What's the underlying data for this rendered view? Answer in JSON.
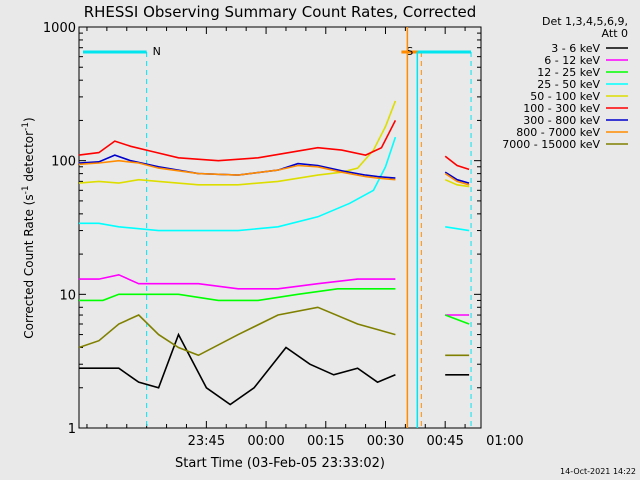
{
  "chart_data": {
    "type": "line",
    "title": "RHESSI Observing Summary Count Rates, Corrected",
    "xlabel": "Start Time (03-Feb-05 23:33:02)",
    "ylabel": "Corrected Count Rate (s-1 detector-1)",
    "ylabel_parts": {
      "pre": "Corrected Count Rate (s",
      "sup1": "-1",
      "mid": " detector",
      "sup2": "-1",
      "post": ")"
    },
    "y_scale": "log",
    "ylim": [
      1,
      1000
    ],
    "xlim_minutes": [
      -20,
      81
    ],
    "x_ticks": [
      {
        "label": "23:45",
        "m": 12
      },
      {
        "label": "00:00",
        "m": 27
      },
      {
        "label": "00:15",
        "m": 42
      },
      {
        "label": "00:30",
        "m": 57
      },
      {
        "label": "00:45",
        "m": 72
      },
      {
        "label": "01:00",
        "m": 87
      }
    ],
    "y_ticks": [
      {
        "label": "1",
        "v": 1
      },
      {
        "label": "10",
        "v": 10
      },
      {
        "label": "100",
        "v": 100
      },
      {
        "label": "1000",
        "v": 1000
      }
    ],
    "legend": {
      "header": [
        "Det 1,3,4,5,6,9,",
        "Att 0"
      ],
      "placement": "right"
    },
    "series": [
      {
        "name": "3 - 6 keV",
        "color": "#000000",
        "points": [
          [
            -20,
            2.8
          ],
          [
            -10,
            2.8
          ],
          [
            -5,
            2.2
          ],
          [
            0,
            2
          ],
          [
            5,
            5
          ],
          [
            12,
            2
          ],
          [
            18,
            1.5
          ],
          [
            24,
            2
          ],
          [
            32,
            4
          ],
          [
            38,
            3
          ],
          [
            44,
            2.5
          ],
          [
            50,
            2.8
          ],
          [
            55,
            2.2
          ],
          [
            59.5,
            2.5
          ]
        ],
        "points2": [
          [
            72,
            2.5
          ],
          [
            78,
            2.5
          ]
        ]
      },
      {
        "name": "6 - 12 keV",
        "color": "#ff00ff",
        "points": [
          [
            -20,
            13
          ],
          [
            -15,
            13
          ],
          [
            -10,
            14
          ],
          [
            -5,
            12
          ],
          [
            0,
            12
          ],
          [
            10,
            12
          ],
          [
            20,
            11
          ],
          [
            30,
            11
          ],
          [
            40,
            12
          ],
          [
            50,
            13
          ],
          [
            59.5,
            13
          ]
        ],
        "points2": [
          [
            72,
            7
          ],
          [
            78,
            7
          ]
        ]
      },
      {
        "name": "12 - 25 keV",
        "color": "#00ff00",
        "points": [
          [
            -20,
            9
          ],
          [
            -14,
            9
          ],
          [
            -10,
            10
          ],
          [
            -5,
            10
          ],
          [
            5,
            10
          ],
          [
            15,
            9
          ],
          [
            25,
            9
          ],
          [
            35,
            10
          ],
          [
            45,
            11
          ],
          [
            52,
            11
          ],
          [
            59.5,
            11
          ]
        ],
        "points2": [
          [
            72,
            7
          ],
          [
            78,
            6
          ]
        ]
      },
      {
        "name": "25 - 50 keV",
        "color": "#00ffff",
        "points": [
          [
            -20,
            34
          ],
          [
            -15,
            34
          ],
          [
            -10,
            32
          ],
          [
            0,
            30
          ],
          [
            10,
            30
          ],
          [
            20,
            30
          ],
          [
            30,
            32
          ],
          [
            40,
            38
          ],
          [
            48,
            48
          ],
          [
            54,
            60
          ],
          [
            57,
            90
          ],
          [
            59.5,
            150
          ]
        ],
        "points2": [
          [
            72,
            32
          ],
          [
            78,
            30
          ]
        ]
      },
      {
        "name": "50 - 100 keV",
        "color": "#dddd00",
        "points": [
          [
            -20,
            68
          ],
          [
            -15,
            70
          ],
          [
            -10,
            68
          ],
          [
            -5,
            72
          ],
          [
            0,
            70
          ],
          [
            10,
            66
          ],
          [
            20,
            66
          ],
          [
            30,
            70
          ],
          [
            40,
            78
          ],
          [
            46,
            82
          ],
          [
            50,
            88
          ],
          [
            54,
            120
          ],
          [
            57,
            180
          ],
          [
            59.5,
            280
          ]
        ],
        "points2": [
          [
            72,
            72
          ],
          [
            75,
            66
          ],
          [
            78,
            64
          ]
        ]
      },
      {
        "name": "100 - 300 keV",
        "color": "#ff0000",
        "points": [
          [
            -20,
            110
          ],
          [
            -15,
            115
          ],
          [
            -11,
            140
          ],
          [
            -7,
            128
          ],
          [
            -2,
            118
          ],
          [
            5,
            105
          ],
          [
            15,
            100
          ],
          [
            25,
            105
          ],
          [
            35,
            118
          ],
          [
            40,
            125
          ],
          [
            46,
            120
          ],
          [
            52,
            110
          ],
          [
            56,
            125
          ],
          [
            59.5,
            200
          ]
        ],
        "points2": [
          [
            72,
            108
          ],
          [
            75,
            92
          ],
          [
            78,
            86
          ]
        ]
      },
      {
        "name": "300 - 800 keV",
        "color": "#0000cc",
        "points": [
          [
            -20,
            96
          ],
          [
            -15,
            98
          ],
          [
            -11,
            110
          ],
          [
            -7,
            100
          ],
          [
            0,
            90
          ],
          [
            10,
            80
          ],
          [
            20,
            78
          ],
          [
            30,
            85
          ],
          [
            35,
            95
          ],
          [
            40,
            92
          ],
          [
            46,
            84
          ],
          [
            52,
            78
          ],
          [
            55,
            76
          ],
          [
            59.5,
            74
          ]
        ],
        "points2": [
          [
            72,
            82
          ],
          [
            75,
            72
          ],
          [
            78,
            68
          ]
        ]
      },
      {
        "name": "800 - 7000 keV",
        "color": "#ff8c00",
        "points": [
          [
            -20,
            94
          ],
          [
            -15,
            96
          ],
          [
            -10,
            100
          ],
          [
            -5,
            96
          ],
          [
            0,
            88
          ],
          [
            10,
            80
          ],
          [
            20,
            78
          ],
          [
            30,
            85
          ],
          [
            35,
            92
          ],
          [
            40,
            90
          ],
          [
            46,
            82
          ],
          [
            52,
            76
          ],
          [
            55,
            74
          ],
          [
            59.5,
            72
          ]
        ],
        "points2": [
          [
            72,
            80
          ],
          [
            75,
            70
          ],
          [
            78,
            66
          ]
        ]
      },
      {
        "name": "7000 - 15000 keV",
        "color": "#808000",
        "points": [
          [
            -20,
            4
          ],
          [
            -15,
            4.5
          ],
          [
            -10,
            6
          ],
          [
            -5,
            7
          ],
          [
            0,
            5
          ],
          [
            5,
            4
          ],
          [
            10,
            3.5
          ],
          [
            20,
            5
          ],
          [
            30,
            7
          ],
          [
            40,
            8
          ],
          [
            50,
            6
          ],
          [
            59.5,
            5
          ]
        ],
        "points2": [
          [
            72,
            3.5
          ],
          [
            78,
            3.5
          ]
        ]
      }
    ],
    "annotations": [
      {
        "label": "N",
        "color": "#00e5ee",
        "bar": [
          -19,
          -3
        ],
        "marker": -3
      },
      {
        "label": "S",
        "color": "#ff8c00",
        "bar": [
          61,
          66
        ],
        "marker": 66
      }
    ],
    "timestamp": "14-Oct-2021 14:22"
  }
}
